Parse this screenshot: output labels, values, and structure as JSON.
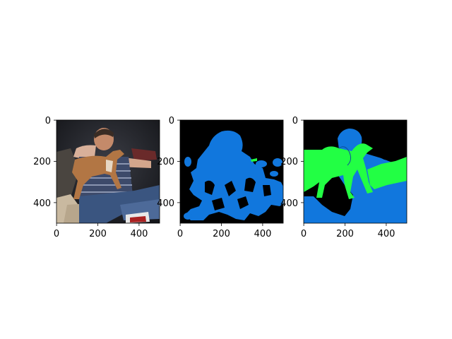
{
  "figure": {
    "background": "#ffffff",
    "axis_color": "#000000",
    "panels": [
      {
        "id": "photo",
        "content": "photo: man on couch holding a small tan dog",
        "xticks": [
          "0",
          "200",
          "400"
        ],
        "yticks": [
          "0",
          "200",
          "400"
        ],
        "xlim": [
          0,
          500
        ],
        "ylim": [
          500,
          0
        ]
      },
      {
        "id": "mask-prediction",
        "content": "segmentation mask",
        "colors": {
          "background": "#000000",
          "person": "#1177dd",
          "dog": "#22ff44"
        },
        "xticks": [
          "0",
          "200",
          "400"
        ],
        "yticks": [
          "0",
          "200",
          "400"
        ],
        "xlim": [
          0,
          500
        ],
        "ylim": [
          500,
          0
        ]
      },
      {
        "id": "mask-ground-truth",
        "content": "segmentation mask",
        "colors": {
          "background": "#000000",
          "person": "#1177dd",
          "dog": "#22ff44"
        },
        "xticks": [
          "0",
          "200",
          "400"
        ],
        "yticks": [
          "0",
          "200",
          "400"
        ],
        "xlim": [
          0,
          500
        ],
        "ylim": [
          500,
          0
        ]
      }
    ]
  }
}
